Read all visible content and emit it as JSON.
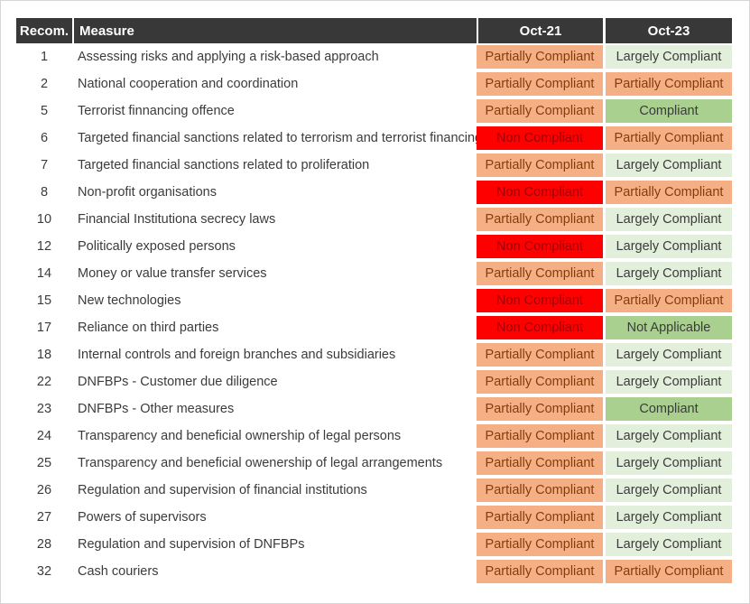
{
  "table": {
    "headers": {
      "recom": "Recom.",
      "measure": "Measure",
      "oct21": "Oct-21",
      "oct23": "Oct-23"
    },
    "rows": [
      {
        "recom": "1",
        "measure": "Assessing risks and applying a risk-based approach",
        "oct21": "Partially Compliant",
        "oct23": "Largely Compliant"
      },
      {
        "recom": "2",
        "measure": "National cooperation and coordination",
        "oct21": "Partially Compliant",
        "oct23": "Partially Compliant"
      },
      {
        "recom": "5",
        "measure": "Terrorist finnancing offence",
        "oct21": "Partially Compliant",
        "oct23": "Compliant"
      },
      {
        "recom": "6",
        "measure": "Targeted financial sanctions related to terrorism and terrorist financing",
        "oct21": "Non Compliant",
        "oct23": "Partially Compliant"
      },
      {
        "recom": "7",
        "measure": "Targeted financial sanctions related to proliferation",
        "oct21": "Partially Compliant",
        "oct23": "Largely Compliant"
      },
      {
        "recom": "8",
        "measure": "Non-profit organisations",
        "oct21": "Non Compliant",
        "oct23": "Partially Compliant"
      },
      {
        "recom": "10",
        "measure": "Financial Institutiona secrecy laws",
        "oct21": "Partially Compliant",
        "oct23": "Largely Compliant"
      },
      {
        "recom": "12",
        "measure": "Politically exposed persons",
        "oct21": "Non Compliant",
        "oct23": "Largely Compliant"
      },
      {
        "recom": "14",
        "measure": "Money or value transfer services",
        "oct21": "Partially Compliant",
        "oct23": "Largely Compliant"
      },
      {
        "recom": "15",
        "measure": "New technologies",
        "oct21": "Non Compliant",
        "oct23": "Partially Compliant"
      },
      {
        "recom": "17",
        "measure": "Reliance on third parties",
        "oct21": "Non Compliant",
        "oct23": "Not Applicable"
      },
      {
        "recom": "18",
        "measure": "Internal controls and foreign branches and subsidiaries",
        "oct21": "Partially Compliant",
        "oct23": "Largely Compliant"
      },
      {
        "recom": "22",
        "measure": "DNFBPs - Customer due diligence",
        "oct21": "Partially Compliant",
        "oct23": "Largely Compliant"
      },
      {
        "recom": "23",
        "measure": "DNFBPs - Other measures",
        "oct21": "Partially Compliant",
        "oct23": "Compliant"
      },
      {
        "recom": "24",
        "measure": "Transparency and beneficial ownership of legal persons",
        "oct21": "Partially Compliant",
        "oct23": "Largely Compliant"
      },
      {
        "recom": "25",
        "measure": "Transparency and beneficial owenership of legal arrangements",
        "oct21": "Partially Compliant",
        "oct23": "Largely Compliant"
      },
      {
        "recom": "26",
        "measure": "Regulation and supervision of financial institutions",
        "oct21": "Partially Compliant",
        "oct23": "Largely Compliant"
      },
      {
        "recom": "27",
        "measure": "Powers of supervisors",
        "oct21": "Partially Compliant",
        "oct23": "Largely Compliant"
      },
      {
        "recom": "28",
        "measure": "Regulation and supervision of DNFBPs",
        "oct21": "Partially Compliant",
        "oct23": "Largely Compliant"
      },
      {
        "recom": "32",
        "measure": "Cash couriers",
        "oct21": "Partially Compliant",
        "oct23": "Partially Compliant"
      }
    ]
  },
  "status_colors": {
    "Partially Compliant": {
      "bg": "#F4B084",
      "fg": "#843C0C"
    },
    "Largely Compliant": {
      "bg": "#E2EFDA",
      "fg": "#3B3B3B"
    },
    "Compliant": {
      "bg": "#A9D08E",
      "fg": "#3B3B3B"
    },
    "Not Applicable": {
      "bg": "#A9D08E",
      "fg": "#3B3B3B"
    },
    "Non Compliant": {
      "bg": "#FF0000",
      "fg": "#9C0006"
    }
  },
  "colors": {
    "header_bg": "#383838",
    "header_fg": "#FFFFFF",
    "body_fg": "#3B3B3B",
    "page_border": "#D6D6D6"
  }
}
